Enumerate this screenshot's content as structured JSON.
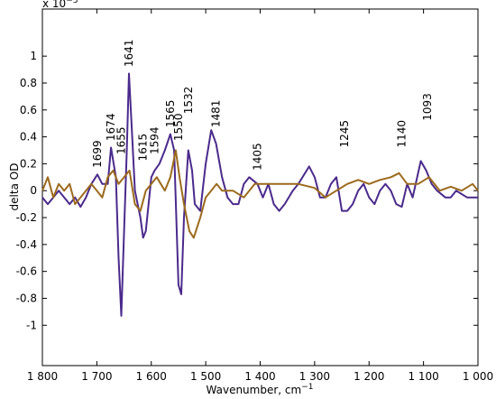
{
  "chart_data": {
    "type": "line",
    "y_label": "delta OD",
    "x_label": "Wavenumber, cm",
    "x_label_sup": "−1",
    "y_multiplier": "x 10",
    "y_multiplier_sup": "−3",
    "xlim": [
      1800,
      1000
    ],
    "ylim": [
      -1.3,
      1.35
    ],
    "xticks": [
      {
        "value": 1800,
        "label": "1 800"
      },
      {
        "value": 1700,
        "label": "1 700"
      },
      {
        "value": 1600,
        "label": "1 600"
      },
      {
        "value": 1500,
        "label": "1 500"
      },
      {
        "value": 1400,
        "label": "1 400"
      },
      {
        "value": 1300,
        "label": "1 300"
      },
      {
        "value": 1200,
        "label": "1 200"
      },
      {
        "value": 1100,
        "label": "1 100"
      },
      {
        "value": 1000,
        "label": "1 000"
      }
    ],
    "yticks": [
      -1,
      -0.8,
      -0.6,
      -0.4,
      -0.2,
      0,
      0.2,
      0.4,
      0.6,
      0.8,
      1
    ],
    "series": [
      {
        "color": "#4b2a8c",
        "x": [
          1800,
          1790,
          1780,
          1770,
          1760,
          1750,
          1740,
          1730,
          1720,
          1710,
          1699,
          1690,
          1680,
          1674,
          1665,
          1660,
          1655,
          1650,
          1645,
          1641,
          1635,
          1630,
          1620,
          1615,
          1610,
          1600,
          1594,
          1585,
          1575,
          1565,
          1558,
          1550,
          1545,
          1540,
          1532,
          1525,
          1520,
          1510,
          1500,
          1490,
          1481,
          1470,
          1460,
          1450,
          1440,
          1430,
          1420,
          1405,
          1395,
          1385,
          1375,
          1365,
          1355,
          1340,
          1330,
          1310,
          1300,
          1290,
          1280,
          1270,
          1260,
          1250,
          1240,
          1230,
          1220,
          1210,
          1200,
          1190,
          1180,
          1170,
          1160,
          1150,
          1140,
          1130,
          1120,
          1105,
          1095,
          1085,
          1075,
          1060,
          1050,
          1040,
          1020,
          1000
        ],
        "values": [
          -0.05,
          -0.1,
          -0.05,
          0,
          -0.05,
          -0.1,
          -0.05,
          -0.12,
          -0.05,
          0.05,
          0.12,
          0.05,
          0.05,
          0.32,
          0.1,
          -0.5,
          -0.93,
          -0.3,
          0.3,
          0.87,
          0.4,
          0,
          -0.2,
          -0.35,
          -0.3,
          0.1,
          0.15,
          0.2,
          0.3,
          0.42,
          0.3,
          -0.7,
          -0.77,
          -0.2,
          0.3,
          0.15,
          -0.1,
          -0.15,
          0.2,
          0.45,
          0.35,
          0.1,
          -0.05,
          -0.1,
          -0.1,
          0.05,
          0.1,
          0.05,
          -0.05,
          0.05,
          -0.1,
          -0.15,
          -0.1,
          0,
          0.05,
          0.18,
          0.1,
          -0.05,
          -0.05,
          0.05,
          0.1,
          -0.15,
          -0.15,
          -0.1,
          0,
          0.05,
          -0.05,
          -0.1,
          0,
          0.05,
          0,
          -0.1,
          -0.12,
          0.05,
          -0.05,
          0.22,
          0.15,
          0.05,
          0,
          -0.05,
          -0.05,
          0,
          -0.05,
          -0.05
        ]
      },
      {
        "color": "#9c6a1c",
        "x": [
          1800,
          1790,
          1780,
          1770,
          1760,
          1750,
          1740,
          1730,
          1720,
          1710,
          1700,
          1690,
          1680,
          1670,
          1660,
          1650,
          1640,
          1630,
          1620,
          1610,
          1600,
          1590,
          1575,
          1565,
          1555,
          1548,
          1540,
          1530,
          1522,
          1510,
          1500,
          1490,
          1480,
          1470,
          1450,
          1430,
          1410,
          1390,
          1370,
          1350,
          1330,
          1300,
          1280,
          1260,
          1240,
          1220,
          1200,
          1180,
          1160,
          1145,
          1130,
          1110,
          1090,
          1070,
          1050,
          1030,
          1010,
          1000
        ],
        "values": [
          0,
          0.1,
          -0.05,
          0.05,
          0,
          0.05,
          -0.1,
          -0.05,
          0,
          0.05,
          0,
          -0.05,
          0.1,
          0.15,
          0.05,
          0.1,
          0.15,
          -0.1,
          -0.15,
          0,
          0.05,
          0.1,
          0,
          0.1,
          0.3,
          0.1,
          -0.1,
          -0.3,
          -0.35,
          -0.2,
          -0.05,
          0,
          0.05,
          0,
          0,
          -0.05,
          0.05,
          0.05,
          0.05,
          0.05,
          0.05,
          0.02,
          -0.05,
          0,
          0.05,
          0.08,
          0.05,
          0.08,
          0.1,
          0.13,
          0.05,
          0.05,
          0.1,
          0,
          0.03,
          0,
          0.05,
          0
        ]
      }
    ],
    "annotations": [
      {
        "text": "1699",
        "x": 1699,
        "y": 0.17
      },
      {
        "text": "1674",
        "x": 1674,
        "y": 0.37
      },
      {
        "text": "1655",
        "x": 1655,
        "y": 0.27
      },
      {
        "text": "1641",
        "x": 1641,
        "y": 0.92
      },
      {
        "text": "1615",
        "x": 1615,
        "y": 0.22
      },
      {
        "text": "1594",
        "x": 1594,
        "y": 0.27
      },
      {
        "text": "1565",
        "x": 1565,
        "y": 0.47
      },
      {
        "text": "1550",
        "x": 1550,
        "y": 0.37
      },
      {
        "text": "1532",
        "x": 1532,
        "y": 0.57
      },
      {
        "text": "1481",
        "x": 1481,
        "y": 0.47
      },
      {
        "text": "1405",
        "x": 1405,
        "y": 0.15
      },
      {
        "text": "1245",
        "x": 1245,
        "y": 0.32
      },
      {
        "text": "1140",
        "x": 1140,
        "y": 0.32
      },
      {
        "text": "1093",
        "x": 1093,
        "y": 0.52
      }
    ]
  }
}
